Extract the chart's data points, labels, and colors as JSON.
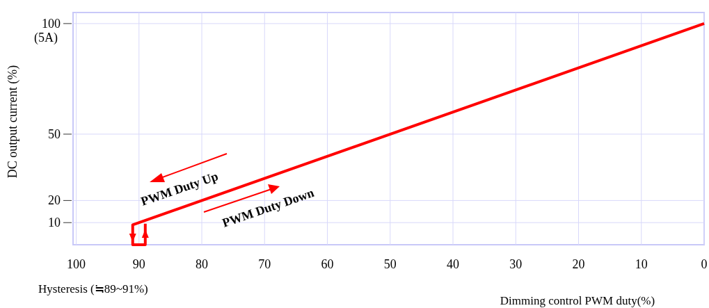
{
  "chart_data": {
    "type": "line",
    "xlabel": "Dimming control PWM duty(%)",
    "ylabel": "DC output current (%)",
    "x": [
      0,
      91,
      91,
      89,
      89
    ],
    "series": [
      {
        "color": "#ff0000",
        "values": [
          100,
          9,
          0,
          0,
          9.5
        ]
      }
    ],
    "xlim": [
      100.5,
      0
    ],
    "xticks": [
      100,
      90,
      80,
      70,
      60,
      50,
      40,
      30,
      20,
      10,
      0
    ],
    "ylim": [
      0,
      105
    ],
    "yticks": [
      10,
      20,
      50,
      {
        "value": 100,
        "label": "100 (5A)"
      }
    ],
    "grid": true,
    "marker": "none",
    "line_style": "solid",
    "annotations": [
      "PWM Duty Up",
      "PWM Duty Down",
      "Hysteresis (≒89~91%)"
    ]
  }
}
